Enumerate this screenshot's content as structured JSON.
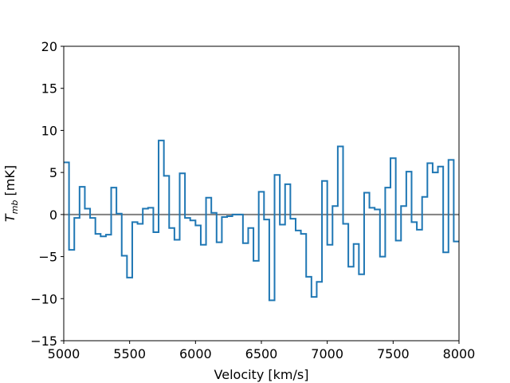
{
  "chart_data": {
    "type": "line",
    "step": true,
    "xlabel": "Velocity [km/s]",
    "ylabel_main": "T",
    "ylabel_sub": "mb",
    "ylabel_unit": " [mK]",
    "xlim": [
      5000,
      8000
    ],
    "ylim": [
      -15,
      20
    ],
    "xticks": [
      5000,
      5500,
      6000,
      6500,
      7000,
      7500,
      8000
    ],
    "yticks": [
      -15,
      -10,
      -5,
      0,
      5,
      10,
      15,
      20
    ],
    "grid": false,
    "baseline": 0,
    "colors": {
      "series": "#1f77b4",
      "baseline": "#808080"
    },
    "series": [
      {
        "x": [
          5000,
          5040,
          5080,
          5120,
          5160,
          5200,
          5240,
          5280,
          5320,
          5360,
          5400,
          5440,
          5480,
          5520,
          5560,
          5600,
          5640,
          5680,
          5720,
          5760,
          5800,
          5840,
          5880,
          5920,
          5960,
          6000,
          6040,
          6080,
          6120,
          6160,
          6200,
          6240,
          6280,
          6320,
          6360,
          6400,
          6440,
          6480,
          6520,
          6560,
          6600,
          6640,
          6680,
          6720,
          6760,
          6800,
          6840,
          6880,
          6920,
          6960,
          7000,
          7040,
          7080,
          7120,
          7160,
          7200,
          7240,
          7280,
          7320,
          7360,
          7400,
          7440,
          7480,
          7520,
          7560,
          7600,
          7640,
          7680,
          7720,
          7760,
          7800,
          7840,
          7880,
          7920,
          7960,
          8000
        ],
        "y": [
          6.2,
          -4.2,
          -0.4,
          3.3,
          0.7,
          -0.4,
          -2.3,
          -2.6,
          -2.4,
          3.2,
          0.1,
          -4.9,
          -7.5,
          -0.9,
          -1.1,
          0.7,
          0.8,
          -2.1,
          8.8,
          4.6,
          -1.6,
          -3.0,
          4.9,
          -0.4,
          -0.7,
          -1.3,
          -3.6,
          2.0,
          0.2,
          -3.3,
          -0.3,
          -0.2,
          0.0,
          0.0,
          -3.4,
          -1.6,
          -5.5,
          2.7,
          -0.6,
          -10.2,
          4.7,
          -1.2,
          3.6,
          -0.5,
          -1.9,
          -2.3,
          -7.4,
          -9.8,
          -8.0,
          4.0,
          -3.6,
          1.0,
          8.1,
          -1.1,
          -6.2,
          -3.5,
          -7.1,
          2.6,
          0.8,
          0.6,
          -5.0,
          3.2,
          6.7,
          -3.1,
          1.0,
          5.1,
          -0.9,
          -1.8,
          2.1,
          6.1,
          5.0,
          5.7,
          -4.5,
          6.5,
          -3.2,
          -3.2
        ]
      }
    ]
  }
}
